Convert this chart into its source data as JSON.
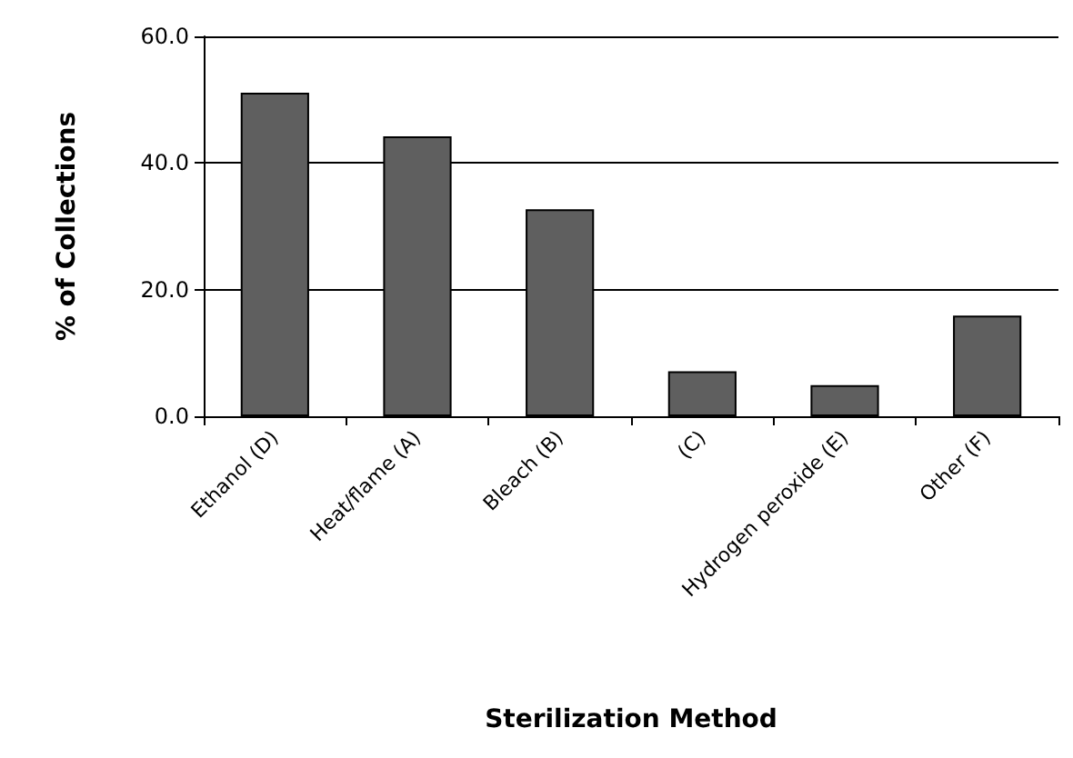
{
  "chart_data": {
    "type": "bar",
    "xlabel": "Sterilization Method",
    "ylabel": "% of Collections",
    "categories": [
      "Ethanol (D)",
      "Heat/flame (A)",
      "Bleach (B)",
      "(C)",
      "Hydrogen peroxide (E)",
      "Other (F)"
    ],
    "values": [
      51.1,
      44.2,
      32.7,
      7.1,
      4.9,
      15.9
    ],
    "color": "#5f5f5f",
    "ylim": [
      0,
      60
    ],
    "yticks": [
      {
        "value": 0,
        "label": "0.0"
      },
      {
        "value": 20,
        "label": "20.0"
      },
      {
        "value": 40,
        "label": "40.0"
      },
      {
        "value": 60,
        "label": "60.0"
      }
    ],
    "grid": "y"
  }
}
